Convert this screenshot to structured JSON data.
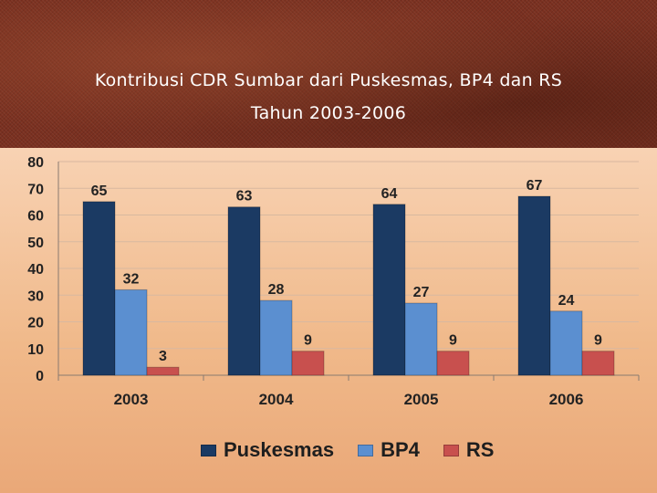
{
  "header": {
    "title_line1": "Kontribusi CDR Sumbar dari Puskesmas, BP4 dan RS",
    "title_line2": "Tahun 2003-2006"
  },
  "colors": {
    "Puskesmas": "#1b3a63",
    "BP4": "#5b8fd0",
    "RS": "#c8504e"
  },
  "chart_data": {
    "type": "bar",
    "title": "Kontribusi CDR Sumbar dari Puskesmas, BP4 dan RS Tahun 2003-2006",
    "categories": [
      "2003",
      "2004",
      "2005",
      "2006"
    ],
    "series": [
      {
        "name": "Puskesmas",
        "values": [
          65,
          63,
          64,
          67
        ]
      },
      {
        "name": "BP4",
        "values": [
          32,
          28,
          27,
          24
        ]
      },
      {
        "name": "RS",
        "values": [
          3,
          9,
          9,
          9
        ]
      }
    ],
    "ylim": [
      0,
      80
    ],
    "yticks": [
      "0",
      "10",
      "20",
      "30",
      "40",
      "50",
      "60",
      "70",
      "80"
    ],
    "grid": true,
    "legend_position": "bottom",
    "data_labels": true
  }
}
